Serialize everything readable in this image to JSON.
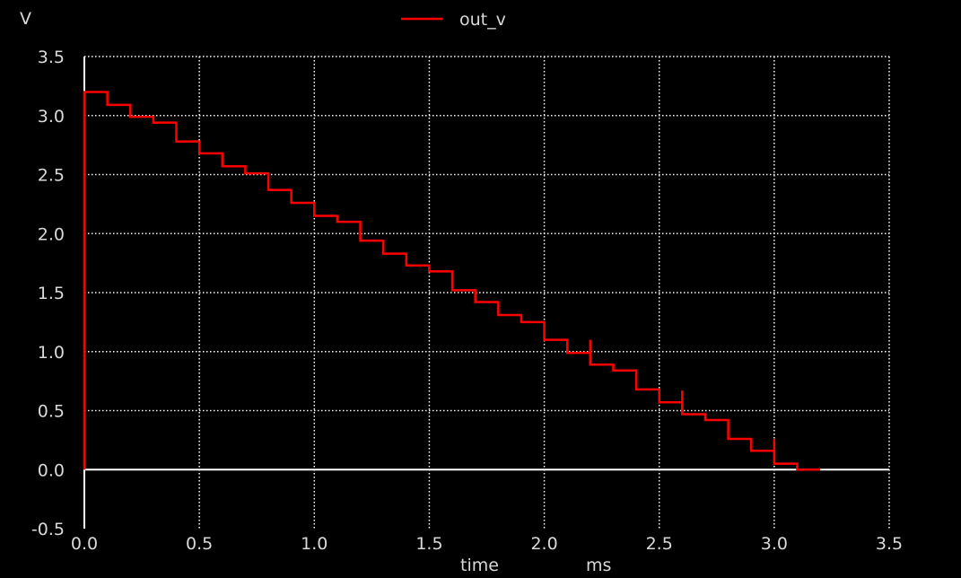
{
  "chart_data": {
    "type": "line",
    "title": "",
    "xlabel": "time",
    "xunit": "ms",
    "ylabel": "V",
    "xlim": [
      0.0,
      3.5
    ],
    "ylim": [
      -0.5,
      3.5
    ],
    "x_ticks": [
      "0.0",
      "0.5",
      "1.0",
      "1.5",
      "2.0",
      "2.5",
      "3.0",
      "3.5"
    ],
    "y_ticks": [
      "3.5",
      "3.0",
      "2.5",
      "2.0",
      "1.5",
      "1.0",
      "0.5",
      "0.0",
      "-0.5"
    ],
    "grid": true,
    "legend_position": "top-center",
    "series": [
      {
        "name": "out_v",
        "color": "#ff0000",
        "interpolation": "step",
        "x": [
          0.0,
          0.0,
          0.1,
          0.2,
          0.3,
          0.4,
          0.5,
          0.6,
          0.7,
          0.8,
          0.9,
          1.0,
          1.1,
          1.2,
          1.3,
          1.4,
          1.5,
          1.6,
          1.7,
          1.8,
          1.9,
          2.0,
          2.1,
          2.2,
          2.3,
          2.4,
          2.5,
          2.6,
          2.7,
          2.8,
          2.9,
          3.0,
          3.1,
          3.2
        ],
        "y": [
          0.0,
          3.2,
          3.09,
          2.99,
          2.94,
          2.78,
          2.68,
          2.57,
          2.51,
          2.37,
          2.26,
          2.15,
          2.1,
          1.94,
          1.83,
          1.73,
          1.68,
          1.52,
          1.42,
          1.31,
          1.25,
          1.1,
          0.99,
          0.89,
          0.84,
          0.68,
          0.57,
          0.47,
          0.42,
          0.26,
          0.16,
          0.05,
          0.0,
          0.0
        ]
      }
    ],
    "spikes": [
      {
        "x": 2.2,
        "y_top": 1.1
      },
      {
        "x": 2.6,
        "y_top": 0.67
      },
      {
        "x": 3.0,
        "y_top": 0.26
      }
    ]
  }
}
